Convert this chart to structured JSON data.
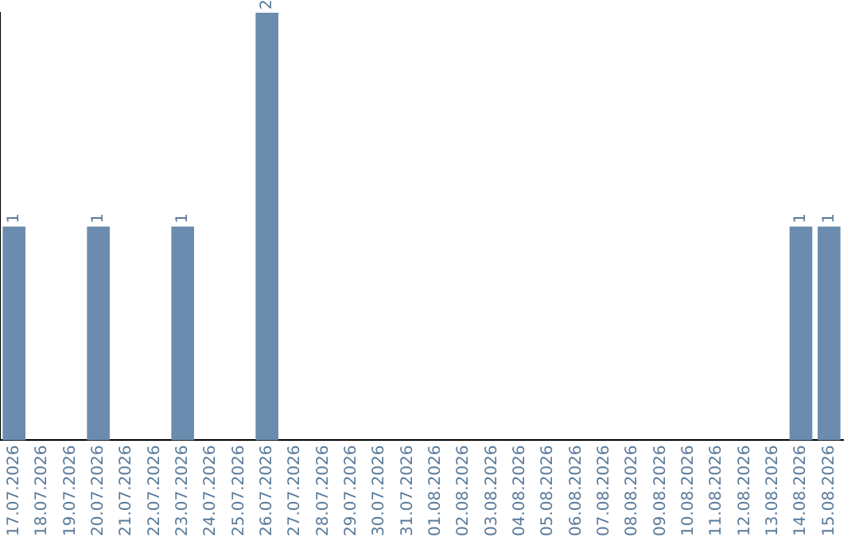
{
  "chart_data": {
    "type": "bar",
    "categories": [
      "17.07.2026",
      "18.07.2026",
      "19.07.2026",
      "20.07.2026",
      "21.07.2026",
      "22.07.2026",
      "23.07.2026",
      "24.07.2026",
      "25.07.2026",
      "26.07.2026",
      "27.07.2026",
      "28.07.2026",
      "29.07.2026",
      "30.07.2026",
      "31.07.2026",
      "01.08.2026",
      "02.08.2026",
      "03.08.2026",
      "04.08.2026",
      "05.08.2026",
      "06.08.2026",
      "07.08.2026",
      "08.08.2026",
      "09.08.2026",
      "10.08.2026",
      "11.08.2026",
      "12.08.2026",
      "13.08.2026",
      "14.08.2026",
      "15.08.2026"
    ],
    "values": [
      1,
      0,
      0,
      1,
      0,
      0,
      1,
      0,
      0,
      2,
      0,
      0,
      0,
      0,
      0,
      0,
      0,
      0,
      0,
      0,
      0,
      0,
      0,
      0,
      0,
      0,
      0,
      0,
      1,
      1
    ],
    "value_labels": [
      "1",
      null,
      null,
      "1",
      null,
      null,
      "1",
      null,
      null,
      "2",
      null,
      null,
      null,
      null,
      null,
      null,
      null,
      null,
      null,
      null,
      null,
      null,
      null,
      null,
      null,
      null,
      null,
      null,
      "1",
      "1"
    ],
    "color": "#6b8cae",
    "grid": false,
    "legend": false,
    "tick_labels": "x"
  }
}
